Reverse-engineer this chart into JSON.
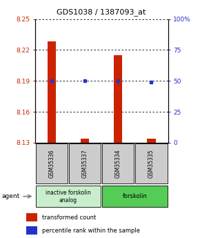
{
  "title": "GDS1038 / 1387093_at",
  "samples": [
    "GSM35336",
    "GSM35337",
    "GSM35334",
    "GSM35335"
  ],
  "bar_values": [
    8.228,
    8.134,
    8.215,
    8.134
  ],
  "bar_bottom": 8.13,
  "percentile_values": [
    8.19,
    8.19,
    8.19,
    8.189
  ],
  "ylim_left": [
    8.13,
    8.25
  ],
  "yticks_left": [
    8.13,
    8.16,
    8.19,
    8.22,
    8.25
  ],
  "ytick_labels_left": [
    "8.13",
    "8.16",
    "8.19",
    "8.22",
    "8.25"
  ],
  "yticks_right": [
    0,
    25,
    50,
    75,
    100
  ],
  "ytick_labels_right": [
    "0",
    "25",
    "50",
    "75",
    "100%"
  ],
  "ylim_right": [
    0,
    100
  ],
  "bar_color": "#cc2200",
  "percentile_color": "#2233cc",
  "grid_color": "#000000",
  "group1_label": "inactive forskolin\nanalog",
  "group2_label": "forskolin",
  "group1_color": "#c8eecb",
  "group2_color": "#55cc55",
  "sample_box_color": "#cccccc",
  "legend_bar_label": "transformed count",
  "legend_pct_label": "percentile rank within the sample",
  "bar_width": 0.25,
  "figwidth": 2.9,
  "figheight": 3.45,
  "dpi": 100
}
